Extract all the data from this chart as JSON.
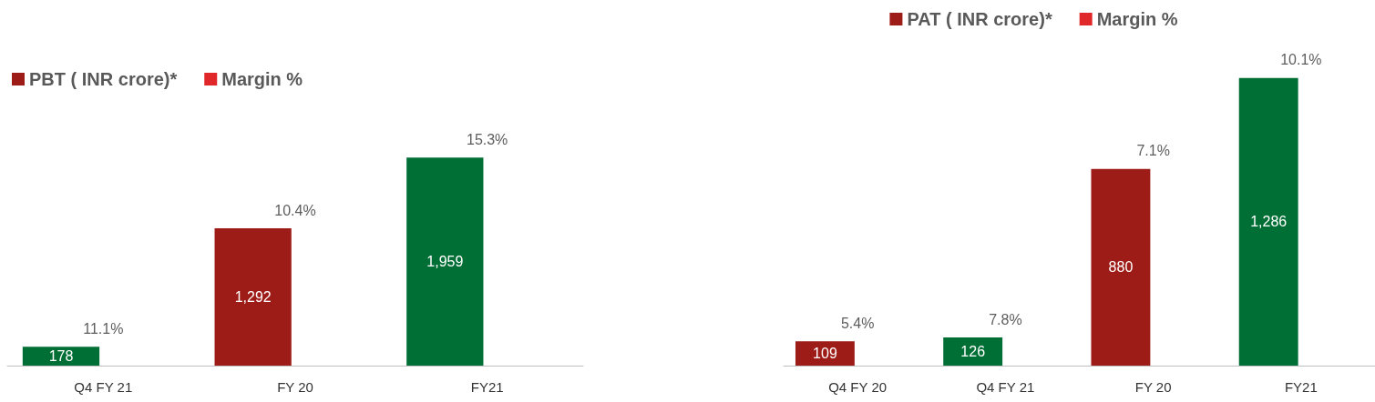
{
  "chart_data": [
    {
      "type": "bar",
      "categories": [
        "Q4 FY 21",
        "FY 20",
        "FY21"
      ],
      "series": [
        {
          "name": "PBT ( INR crore)*",
          "color": "#9e1c17",
          "colors": [
            "#006f35",
            "#9e1c17",
            "#006f35"
          ],
          "values": [
            178,
            1292,
            1959
          ],
          "value_labels": [
            "178",
            "1,292",
            "1,959"
          ]
        },
        {
          "name": "Margin %",
          "color": "#e0282a",
          "values": [
            null,
            null,
            null
          ]
        }
      ],
      "annotations": [
        {
          "text": "11.1%",
          "x": "Q4 FY 21",
          "y": 178
        },
        {
          "text": "10.4%",
          "x": "FY 20",
          "y": 1292
        },
        {
          "text": "15.3%",
          "x": "FY21",
          "y": 1959
        }
      ],
      "legend": "top left",
      "grid": false
    },
    {
      "type": "bar",
      "categories": [
        "Q4 FY 20",
        "Q4 FY 21",
        "FY 20",
        "FY21"
      ],
      "series": [
        {
          "name": "PAT ( INR crore)*",
          "color": "#9e1c17",
          "colors": [
            "#9e1c17",
            "#006f35",
            "#9e1c17",
            "#006f35"
          ],
          "values": [
            109,
            126,
            880,
            1286
          ],
          "value_labels": [
            "109",
            "126",
            "880",
            "1,286"
          ]
        },
        {
          "name": "Margin %",
          "color": "#e0282a",
          "values": [
            null,
            null,
            null,
            null
          ]
        }
      ],
      "annotations": [
        {
          "text": "5.4%",
          "x": "Q4 FY 20",
          "y": 109
        },
        {
          "text": "7.8%",
          "x": "Q4 FY 21",
          "y": 126
        },
        {
          "text": "7.1%",
          "x": "FY 20",
          "y": 880
        },
        {
          "text": "10.1%",
          "x": "FY21",
          "y": 1286
        }
      ],
      "legend": "top",
      "grid": false
    }
  ]
}
